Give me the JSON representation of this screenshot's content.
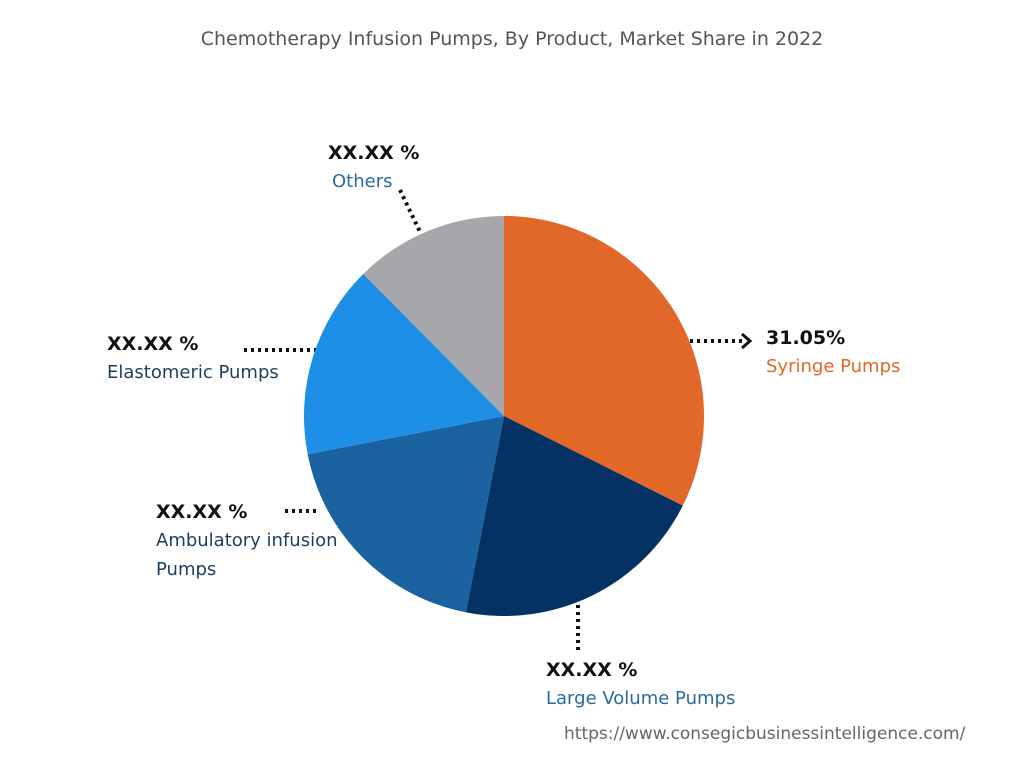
{
  "chart_data": {
    "type": "pie",
    "title": "Chemotherapy Infusion Pumps, By Product, Market Share in 2022",
    "categories": [
      "Syringe Pumps",
      "Large Volume Pumps",
      "Ambulatory infusion Pumps",
      "Elastomeric Pumps",
      "Others"
    ],
    "values": [
      31.05,
      19.8,
      18.1,
      15,
      11.9
    ],
    "value_labels": [
      "31.05%",
      "XX.XX %",
      "XX.XX %",
      "XX.XX %",
      "XX.XX %"
    ],
    "colors": [
      "#e2682a",
      "#043263",
      "#1a62a0",
      "#1e8fe6",
      "#a7a6aa"
    ],
    "label_colors": [
      "#e2682a",
      "#2a6aa0",
      "#1d3f5e",
      "#1d3f5e",
      "#2a6aa0"
    ],
    "source": "https://www.consegicbusinessintelligence.com/"
  }
}
